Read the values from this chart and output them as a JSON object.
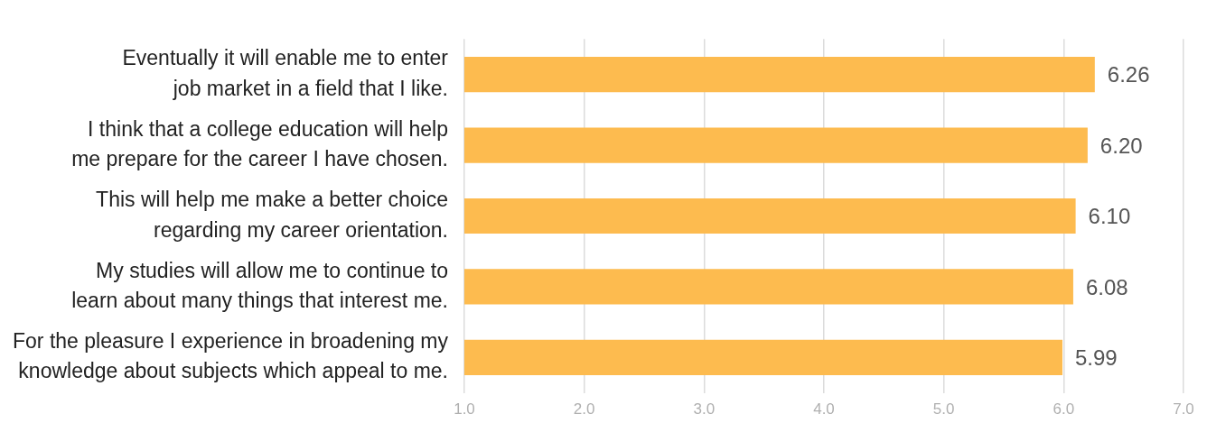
{
  "chart_data": {
    "type": "bar",
    "orientation": "horizontal",
    "categories": [
      "Eventually it will enable me to enter job market in a field that I like.",
      "I think that a college education will help me prepare for the career I have chosen.",
      "This will help me make a better choice regarding my career orientation.",
      "My studies will allow me to continue to learn about many things that interest me.",
      "For the pleasure I experience in broadening my knowledge about subjects which appeal to me."
    ],
    "values": [
      6.26,
      6.2,
      6.1,
      6.08,
      5.99
    ],
    "value_labels": [
      "6.26",
      "6.20",
      "6.10",
      "6.08",
      "5.99"
    ],
    "color": "#fdbb4f",
    "xlim": [
      1,
      7
    ],
    "xticks": [
      {
        "value": 1,
        "label": "1.0"
      },
      {
        "value": 2,
        "label": "2.0"
      },
      {
        "value": 3,
        "label": "3.0"
      },
      {
        "value": 4,
        "label": "4.0"
      },
      {
        "value": 5,
        "label": "5.0"
      },
      {
        "value": 6,
        "label": "6.0"
      },
      {
        "value": 7,
        "label": "7.0"
      }
    ],
    "grid": "x",
    "legend": false
  }
}
